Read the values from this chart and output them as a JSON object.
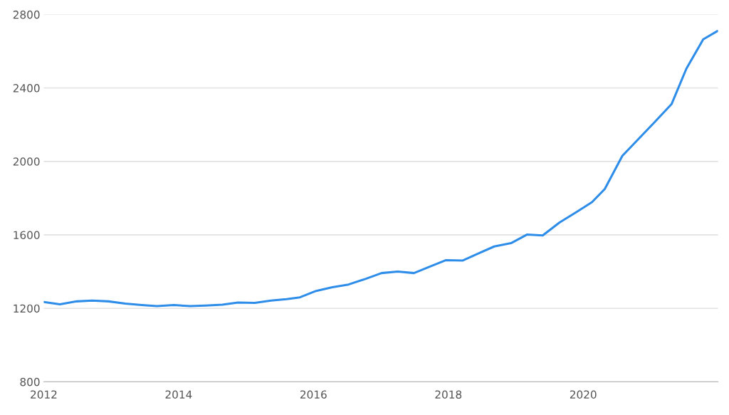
{
  "chart_data": {
    "type": "line",
    "x": [
      2012.0,
      2012.24,
      2012.49,
      2012.72,
      2012.96,
      2013.21,
      2013.45,
      2013.68,
      2013.93,
      2014.17,
      2014.4,
      2014.65,
      2014.88,
      2015.13,
      2015.37,
      2015.6,
      2015.8,
      2016.04,
      2016.28,
      2016.52,
      2016.77,
      2017.01,
      2017.25,
      2017.49,
      2017.73,
      2017.96,
      2018.21,
      2018.45,
      2018.68,
      2018.93,
      2019.17,
      2019.4,
      2019.65,
      2019.89,
      2020.13,
      2020.32,
      2020.58,
      2020.82,
      2021.07,
      2021.31,
      2021.53,
      2021.78,
      2021.99
    ],
    "series": [
      {
        "color": "#2e8de8",
        "values": [
          1235,
          1222,
          1238,
          1242,
          1238,
          1226,
          1218,
          1212,
          1218,
          1212,
          1215,
          1220,
          1232,
          1230,
          1242,
          1250,
          1260,
          1295,
          1315,
          1330,
          1360,
          1392,
          1400,
          1392,
          1428,
          1462,
          1460,
          1500,
          1537,
          1555,
          1602,
          1597,
          1668,
          1722,
          1778,
          1850,
          2030,
          2122,
          2218,
          2312,
          2505,
          2665,
          2710
        ]
      }
    ],
    "xlim": [
      2012,
      2022
    ],
    "xticks": [
      2012,
      2014,
      2016,
      2018,
      2020
    ],
    "ylim": [
      800,
      2800
    ],
    "yticks": [
      800,
      1200,
      1600,
      2000,
      2400,
      2800
    ],
    "grid": "y",
    "marker": "none",
    "line_style": "solid"
  }
}
